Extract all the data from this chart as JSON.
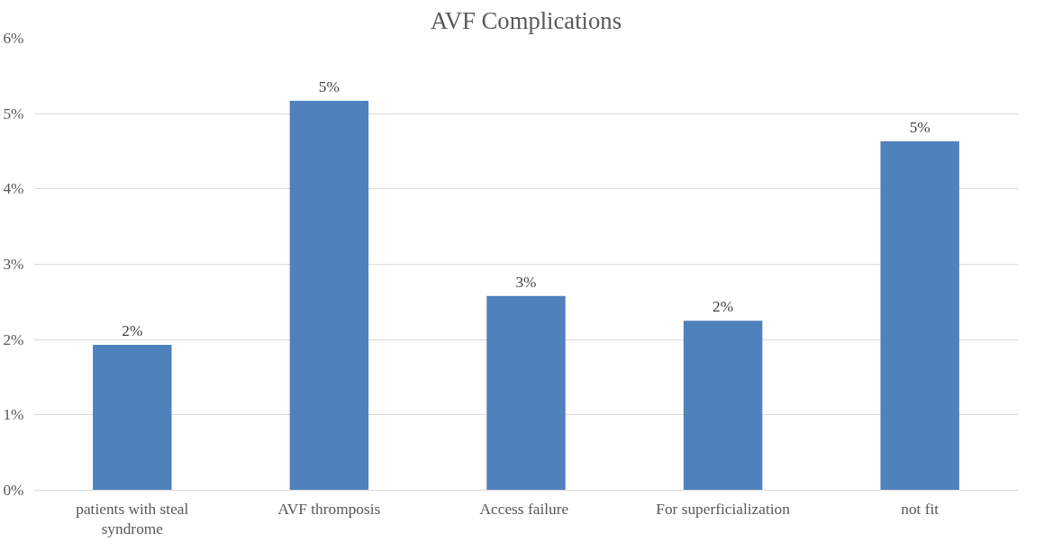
{
  "chart_data": {
    "type": "bar",
    "title": "AVF Complications",
    "categories": [
      "patients with steal syndrome",
      "AVF thromposis",
      "Access  failure",
      "For superficialization",
      "not fit"
    ],
    "values": [
      1.93,
      5.17,
      2.58,
      2.25,
      4.63
    ],
    "value_labels": [
      "2%",
      "5%",
      "3%",
      "2%",
      "5%"
    ],
    "color": "#4f81bd",
    "ylim": [
      0,
      6
    ],
    "yticks": [
      {
        "value": 0,
        "label": "0%"
      },
      {
        "value": 1,
        "label": "1%"
      },
      {
        "value": 2,
        "label": "2%"
      },
      {
        "value": 3,
        "label": "3%"
      },
      {
        "value": 4,
        "label": "4%"
      },
      {
        "value": 5,
        "label": "5%"
      },
      {
        "value": 6,
        "label": "6%"
      }
    ],
    "grid": "y"
  }
}
